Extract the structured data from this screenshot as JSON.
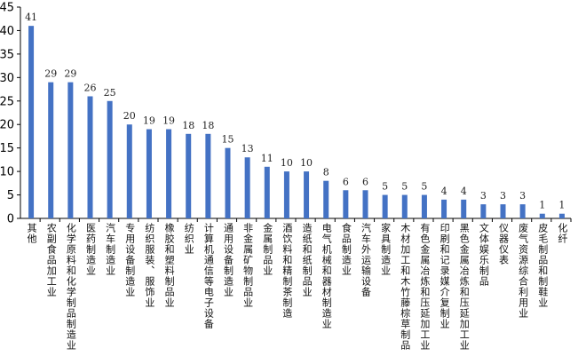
{
  "chart_data": {
    "type": "bar",
    "categories": [
      "其他",
      "农副食品加工业",
      "化学原料和化学制品制造业",
      "医药制造业",
      "汽车制造业",
      "专用设备制造业",
      "纺织服装、服饰业",
      "橡胶和塑料制品业",
      "纺织业",
      "计算机通信等电子设备",
      "通用设备制造业",
      "非金属矿物制品业",
      "金属制品业",
      "酒饮料和精制茶制造",
      "造纸和纸制品业",
      "电气机械和器材制造业",
      "食品制造业",
      "汽车外运输设备",
      "家具制造业",
      "木材加工和木竹藤棕草制品",
      "有色金属冶炼和压延加工业",
      "印刷和记录媒介复制业",
      "黑色金属冶炼和压延加工业",
      "文体娱乐制品",
      "仪器仪表",
      "废气资源综合利用业",
      "皮毛制品和制鞋业",
      "化纤"
    ],
    "values": [
      41,
      29,
      29,
      26,
      25,
      20,
      19,
      19,
      18,
      18,
      15,
      13,
      11,
      10,
      10,
      8,
      6,
      6,
      5,
      5,
      5,
      4,
      4,
      3,
      3,
      3,
      1,
      1
    ],
    "ylim": [
      0,
      45
    ],
    "yticks": [
      0,
      5,
      10,
      15,
      20,
      25,
      30,
      35,
      40,
      45
    ],
    "data_labels": true,
    "grid": false,
    "bar_color": "#4472C4"
  }
}
